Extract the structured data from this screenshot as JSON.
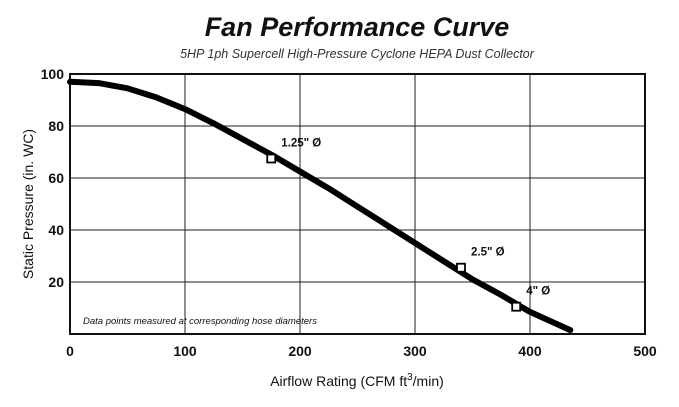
{
  "chart_data": {
    "type": "line",
    "title": "Fan Performance Curve",
    "subtitle": "5HP 1ph Supercell High-Pressure Cyclone HEPA Dust Collector",
    "xlabel_text": "Airflow Rating (CFM ft",
    "xlabel_sup": "3",
    "xlabel_tail": "/min)",
    "ylabel": "Static Pressure (in. WC)",
    "xlim": [
      0,
      500
    ],
    "ylim": [
      0,
      100
    ],
    "x_ticks": [
      0,
      100,
      200,
      300,
      400,
      500
    ],
    "x_tick_labels": [
      "0",
      "100",
      "200",
      "300",
      "400",
      "500"
    ],
    "y_ticks": [
      20,
      40,
      60,
      80,
      100
    ],
    "y_tick_labels": [
      "20",
      "40",
      "60",
      "80",
      "100"
    ],
    "grid": true,
    "curve": {
      "x": [
        0,
        25,
        50,
        75,
        100,
        125,
        150,
        175,
        200,
        225,
        250,
        275,
        300,
        325,
        350,
        375,
        400,
        420,
        435
      ],
      "y": [
        97,
        96.5,
        94.5,
        91,
        86.5,
        81,
        75,
        69,
        62.5,
        56,
        49,
        42,
        35,
        28,
        21,
        15,
        8.5,
        4.5,
        1.5
      ]
    },
    "points": [
      {
        "x": 175,
        "y": 67.5,
        "label": "1.25\" Ø"
      },
      {
        "x": 340,
        "y": 25.5,
        "label": "2.5\" Ø"
      },
      {
        "x": 388,
        "y": 10.5,
        "label": "4\" Ø"
      }
    ],
    "annotation": "Data points measured at corresponding hose diameters"
  }
}
